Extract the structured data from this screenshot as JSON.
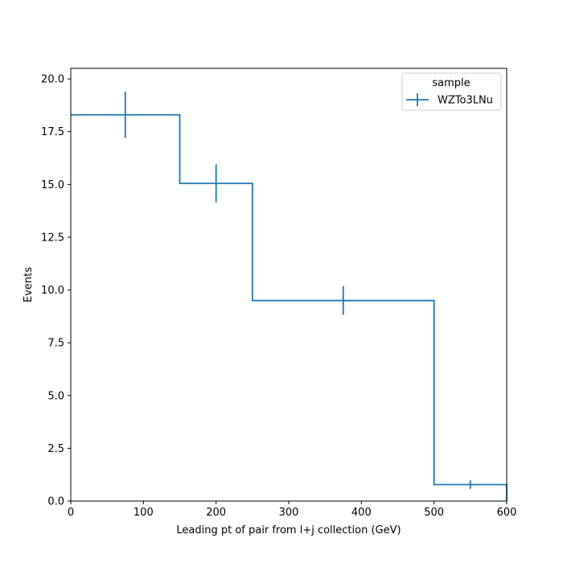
{
  "chart_data": {
    "type": "histogram",
    "xlabel": "Leading pt of pair from l+j collection (GeV)",
    "ylabel": "Events",
    "xlim": [
      0,
      600
    ],
    "ylim": [
      0,
      20.5
    ],
    "xticks": [
      0,
      100,
      200,
      300,
      400,
      500,
      600
    ],
    "xtick_labels": [
      "0",
      "100",
      "200",
      "300",
      "400",
      "500",
      "600"
    ],
    "yticks": [
      0,
      2.5,
      5,
      7.5,
      10,
      12.5,
      15,
      17.5,
      20
    ],
    "ytick_labels": [
      "0.0",
      "2.5",
      "5.0",
      "7.5",
      "10.0",
      "12.5",
      "15.0",
      "17.5",
      "20.0"
    ],
    "grid": false,
    "legend": {
      "title": "sample",
      "placement": "top-right",
      "entries": [
        "WZTo3LNu"
      ]
    },
    "series": [
      {
        "name": "WZTo3LNu",
        "color": "#1f77b4",
        "bin_edges": [
          0,
          150,
          250,
          500,
          600
        ],
        "values": [
          18.3,
          15.05,
          9.5,
          0.78
        ],
        "errors": [
          1.1,
          0.9,
          0.68,
          0.2
        ]
      }
    ]
  }
}
